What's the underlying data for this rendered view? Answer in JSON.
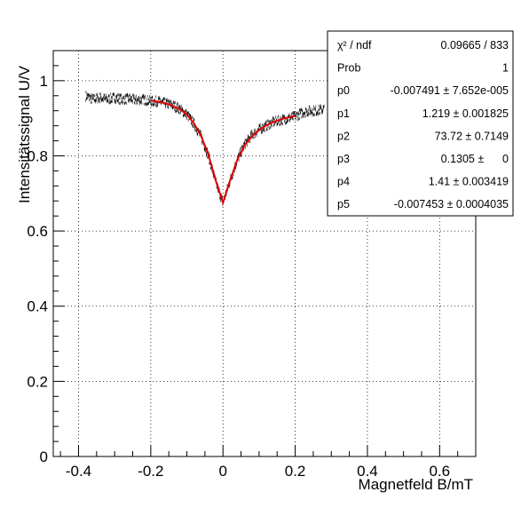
{
  "chart_data": {
    "type": "scatter",
    "xlabel": "Magnetfeld B/mT",
    "ylabel": "Intensitätssignal U/V",
    "xlim": [
      -0.47,
      0.7
    ],
    "ylim": [
      0,
      1.08
    ],
    "x_ticks": [
      -0.4,
      -0.2,
      0,
      0.2,
      0.4,
      0.6
    ],
    "x_tick_labels": [
      "-0.4",
      "-0.2",
      "0",
      "0.2",
      "0.4",
      "0.6"
    ],
    "y_ticks": [
      0,
      0.2,
      0.4,
      0.6,
      0.8,
      1
    ],
    "y_tick_labels": [
      "0",
      "0.2",
      "0.4",
      "0.6",
      "0.8",
      "1"
    ],
    "grid": true,
    "data_range": [
      -0.38,
      0.28
    ],
    "fit_range": [
      -0.2,
      0.2
    ],
    "data_color": "#000000",
    "fit_color": "#e00000",
    "series": [
      {
        "x": [
          -0.38,
          -0.36,
          -0.34,
          -0.32,
          -0.3,
          -0.28,
          -0.26,
          -0.24,
          -0.22,
          -0.2,
          -0.18,
          -0.16,
          -0.14,
          -0.12,
          -0.1,
          -0.08,
          -0.06,
          -0.04,
          -0.02,
          0,
          0.02,
          0.04,
          0.06,
          0.08,
          0.1,
          0.12,
          0.14,
          0.16,
          0.18,
          0.2,
          0.22,
          0.24,
          0.26,
          0.28
        ],
        "y": [
          0.96,
          0.95,
          0.955,
          0.95,
          0.955,
          0.95,
          0.952,
          0.948,
          0.95,
          0.945,
          0.945,
          0.94,
          0.935,
          0.925,
          0.91,
          0.885,
          0.85,
          0.8,
          0.73,
          0.675,
          0.735,
          0.79,
          0.83,
          0.855,
          0.87,
          0.88,
          0.89,
          0.895,
          0.9,
          0.905,
          0.915,
          0.92,
          0.92,
          0.925
        ]
      },
      {
        "x": [
          -0.2,
          -0.18,
          -0.16,
          -0.14,
          -0.12,
          -0.1,
          -0.08,
          -0.06,
          -0.04,
          -0.02,
          0,
          0.02,
          0.04,
          0.06,
          0.08,
          0.1,
          0.12,
          0.14,
          0.16,
          0.18,
          0.2
        ],
        "y": [
          0.947,
          0.944,
          0.94,
          0.933,
          0.924,
          0.91,
          0.886,
          0.852,
          0.802,
          0.734,
          0.675,
          0.736,
          0.79,
          0.828,
          0.852,
          0.869,
          0.881,
          0.89,
          0.897,
          0.902,
          0.906
        ]
      }
    ]
  },
  "stats_box": {
    "rows": [
      {
        "label": "χ² / ndf",
        "value": "0.09665 / 833"
      },
      {
        "label": "Prob",
        "value": "1"
      },
      {
        "label": "p0",
        "value": "-0.007491 ± 7.652e-005"
      },
      {
        "label": "p1",
        "value": "1.219 ± 0.001825"
      },
      {
        "label": "p2",
        "value": "73.72 ± 0.7149"
      },
      {
        "label": "p3",
        "value": "0.1305 ±      0"
      },
      {
        "label": "p4",
        "value": "1.41 ± 0.003419"
      },
      {
        "label": "p5",
        "value": "-0.007453 ± 0.0004035"
      }
    ]
  }
}
